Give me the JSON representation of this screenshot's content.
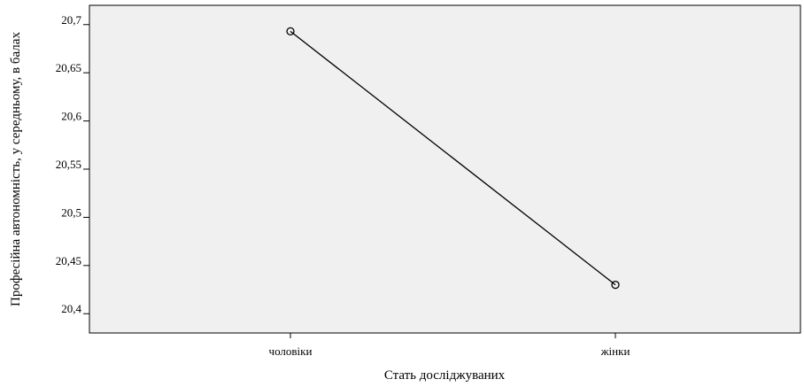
{
  "chart_data": {
    "type": "line",
    "title": "",
    "xlabel": "Стать досліджуваних",
    "ylabel": "Професійна автономність, у середньому, в балах",
    "categories": [
      "чоловіки",
      "жінки"
    ],
    "series": [
      {
        "values": [
          20.693,
          20.43
        ],
        "marker": "circle",
        "color": "#000000"
      }
    ],
    "yticks": [
      20.4,
      20.45,
      20.5,
      20.55,
      20.6,
      20.65,
      20.7
    ],
    "ytick_labels": [
      "20,4",
      "20,45",
      "20,5",
      "20,55",
      "20,6",
      "20,65",
      "20,7"
    ],
    "ylim": [
      20.38,
      20.72
    ],
    "grid": false,
    "legend": "none",
    "plot_background": "#f0f0f0",
    "line_color": "#000000"
  }
}
